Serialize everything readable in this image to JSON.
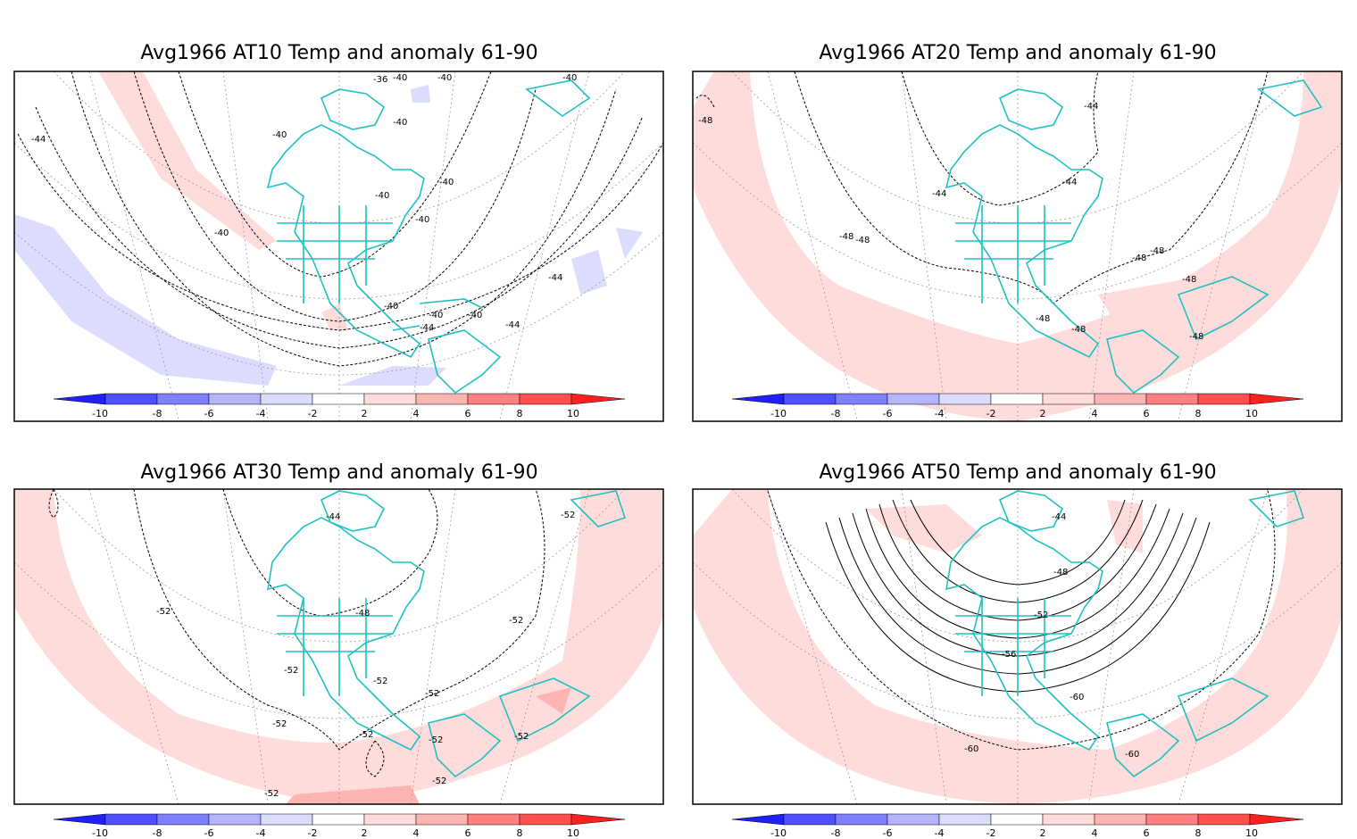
{
  "panels": [
    {
      "title": "Avg1966 AT10 Temp and anomaly 61-90",
      "contour_labels": [
        "-36",
        "-40",
        "-40",
        "-40",
        "-40",
        "-40",
        "-40",
        "-40",
        "-40",
        "-40",
        "-40",
        "-44",
        "-44",
        "-44",
        "-44",
        "-40",
        "-40"
      ]
    },
    {
      "title": "Avg1966 AT20 Temp and anomaly 61-90",
      "contour_labels": [
        "-44",
        "-44",
        "-44",
        "-48",
        "-48",
        "-48",
        "-48",
        "-48",
        "-48",
        "-48",
        "-48",
        "-48"
      ]
    },
    {
      "title": "Avg1966 AT30 Temp and anomaly 61-90",
      "contour_labels": [
        "-44",
        "-52",
        "-52",
        "-48",
        "-52",
        "-52",
        "-52",
        "-52",
        "-52",
        "-52",
        "-52",
        "-52",
        "-52",
        "-52"
      ]
    },
    {
      "title": "Avg1966 AT50 Temp and anomaly 61-90",
      "contour_labels": [
        "-44",
        "-48",
        "-52",
        "-56",
        "-60",
        "-60",
        "-60"
      ]
    }
  ],
  "colorbar": {
    "ticks": [
      "-10",
      "-8",
      "-6",
      "-4",
      "-2",
      "2",
      "4",
      "6",
      "8",
      "10"
    ],
    "colors": [
      "#2020ff",
      "#5050ff",
      "#8080ff",
      "#b4b4ff",
      "#dcdcff",
      "#ffffff",
      "#ffdcdc",
      "#ffb4b4",
      "#ff8080",
      "#ff5050",
      "#ff2020"
    ]
  },
  "colors": {
    "coast": "#20c0c0",
    "anom_pos": "#ffdcdc",
    "anom_pos2": "#ffb4b4",
    "anom_neg": "#dcdcff"
  }
}
